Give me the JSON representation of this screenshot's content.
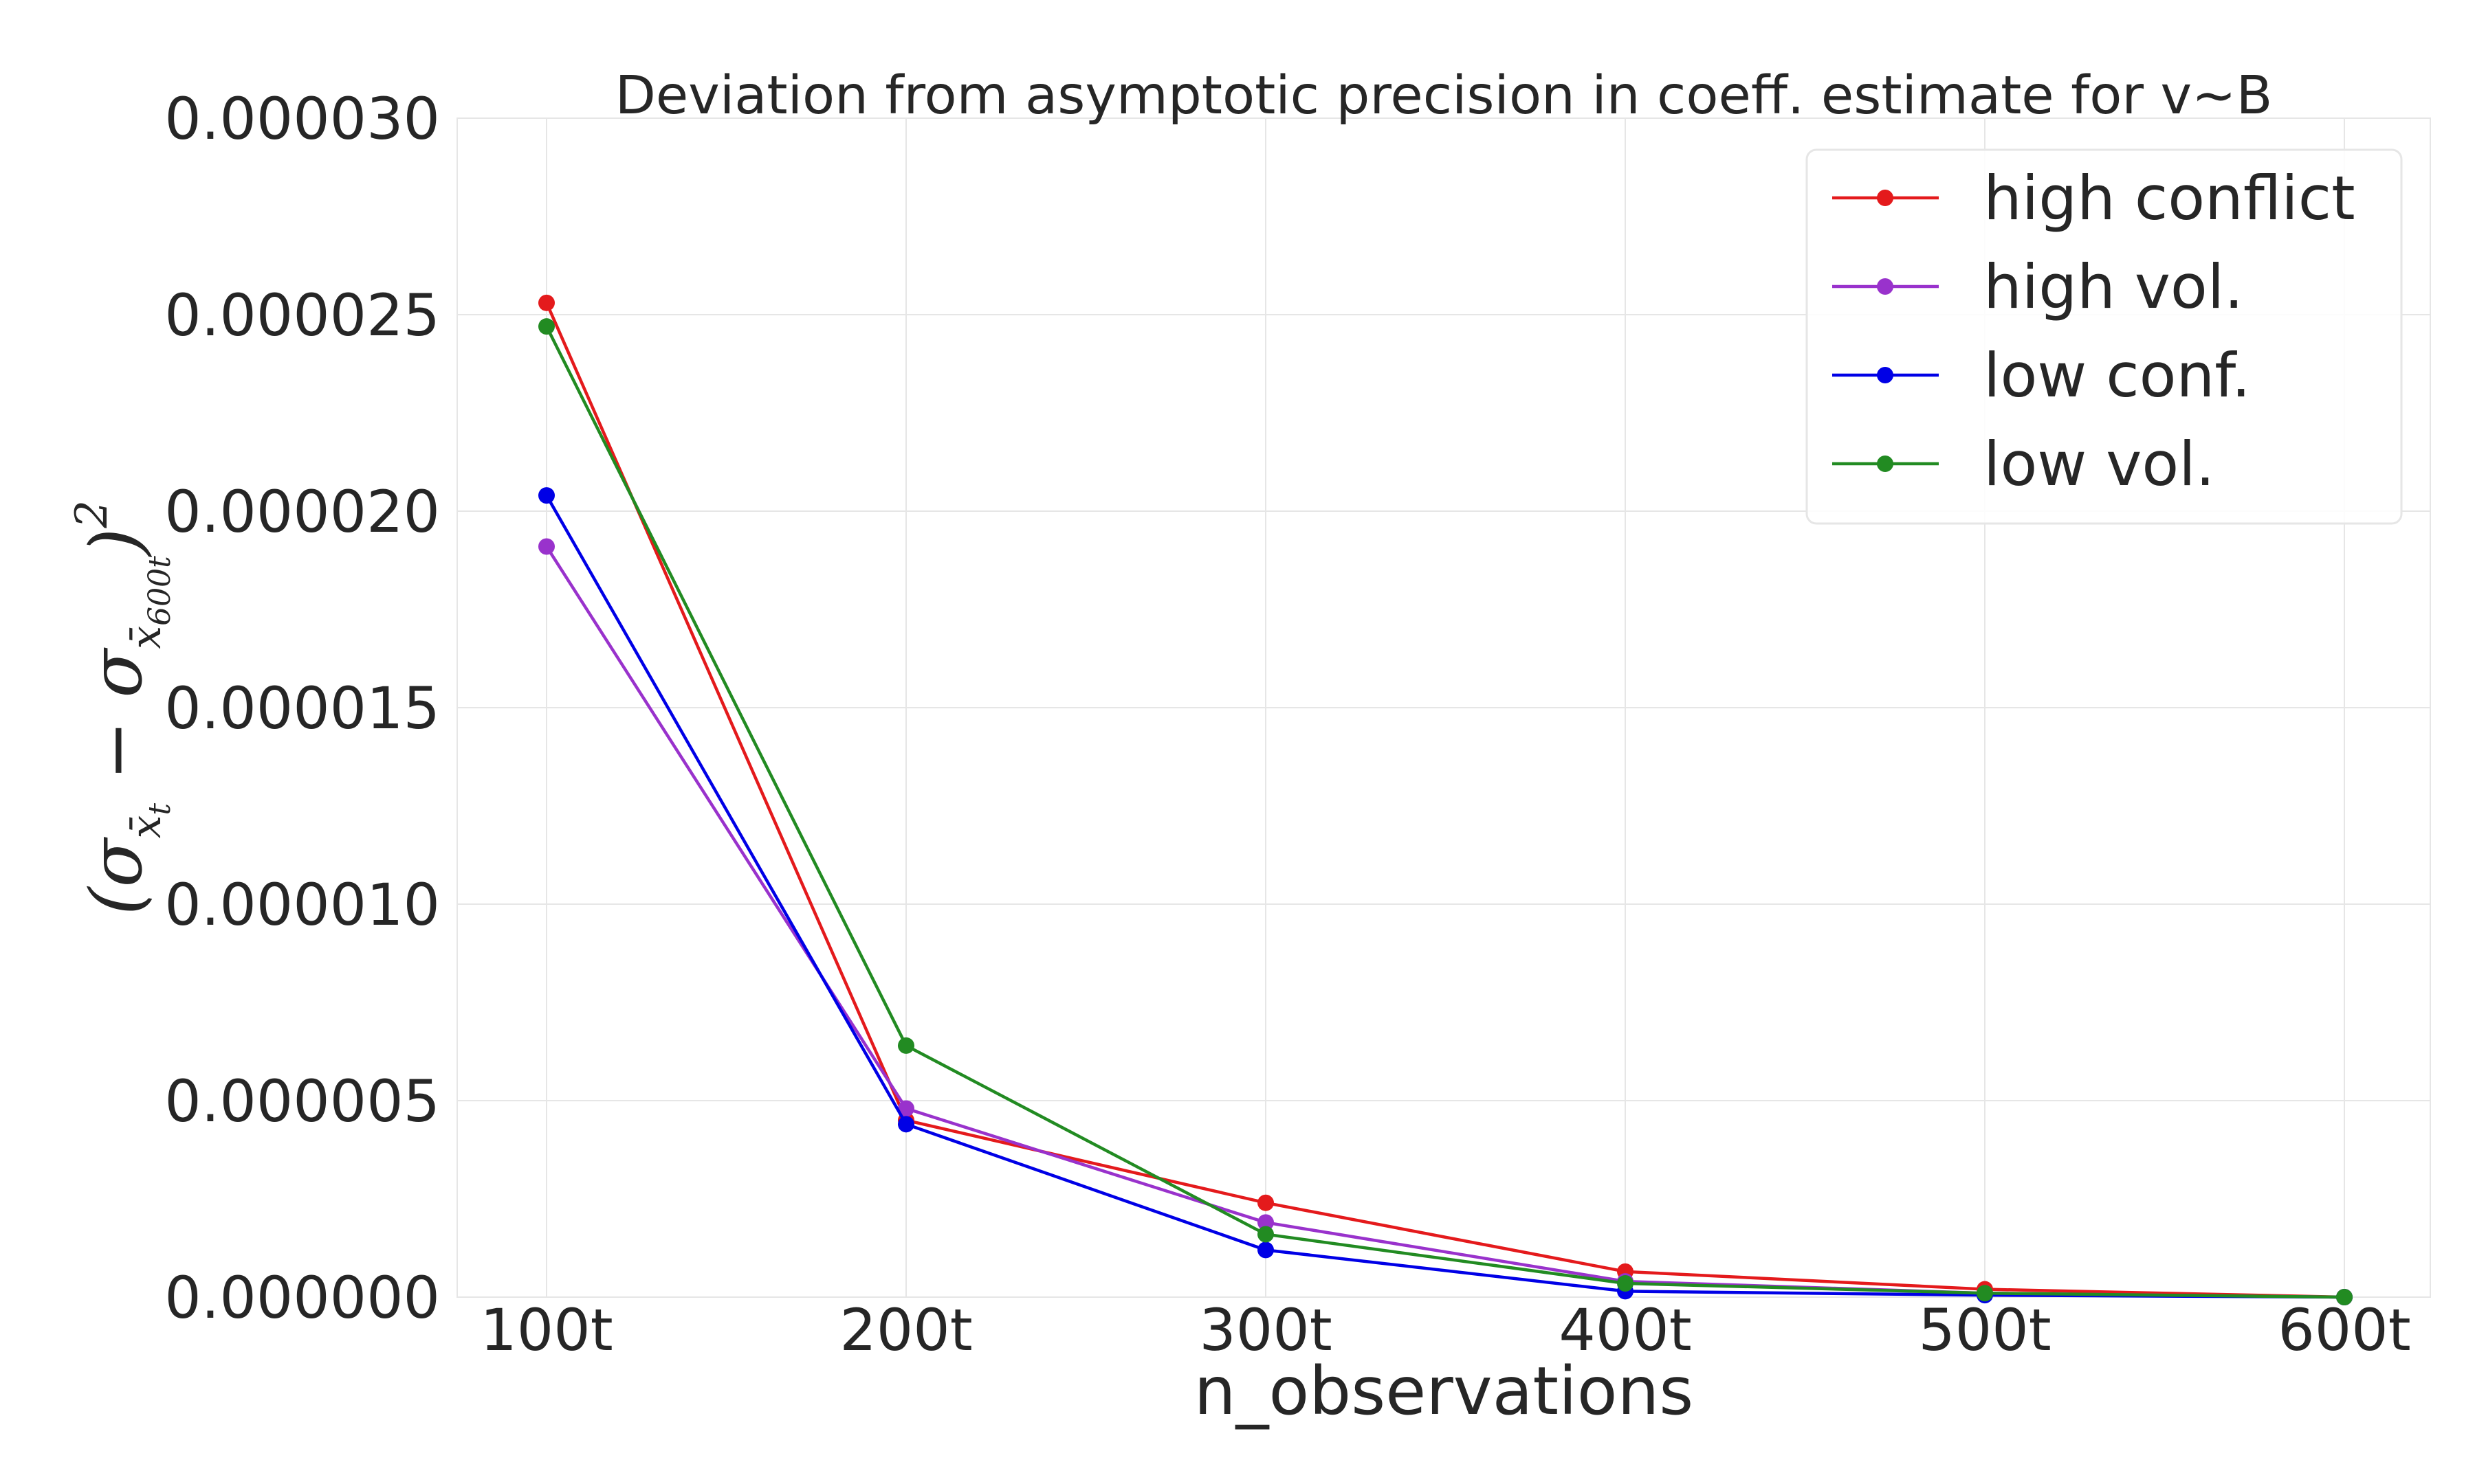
{
  "chart_data": {
    "type": "line",
    "title": "Deviation from asymptotic precision in coeff. estimate for v~B",
    "xlabel": "n_observations",
    "ylabel": "(σ_{x̄_t} − σ_{x̄_600t})^2",
    "categories": [
      "100t",
      "200t",
      "300t",
      "400t",
      "500t",
      "600t"
    ],
    "ylim": [
      0,
      3e-05
    ],
    "yticks": [
      "0.000000",
      "0.000005",
      "0.000010",
      "0.000015",
      "0.000020",
      "0.000025",
      "0.000030"
    ],
    "grid": true,
    "legend_position": "top-right",
    "series": [
      {
        "name": "high conflict",
        "color": "#e41a1c",
        "values": [
          2.53e-05,
          4.5e-06,
          2.4e-06,
          6.5e-07,
          2e-07,
          0.0
        ]
      },
      {
        "name": "high vol.",
        "color": "#9932cc",
        "values": [
          1.91e-05,
          4.8e-06,
          1.9e-06,
          4e-07,
          1e-07,
          0.0
        ]
      },
      {
        "name": "low conf.",
        "color": "#0000e6",
        "values": [
          2.04e-05,
          4.4e-06,
          1.2e-06,
          1.5e-07,
          5e-08,
          0.0
        ]
      },
      {
        "name": "low vol.",
        "color": "#228b22",
        "values": [
          2.47e-05,
          6.4e-06,
          1.6e-06,
          3.5e-07,
          1e-07,
          0.0
        ]
      }
    ]
  }
}
